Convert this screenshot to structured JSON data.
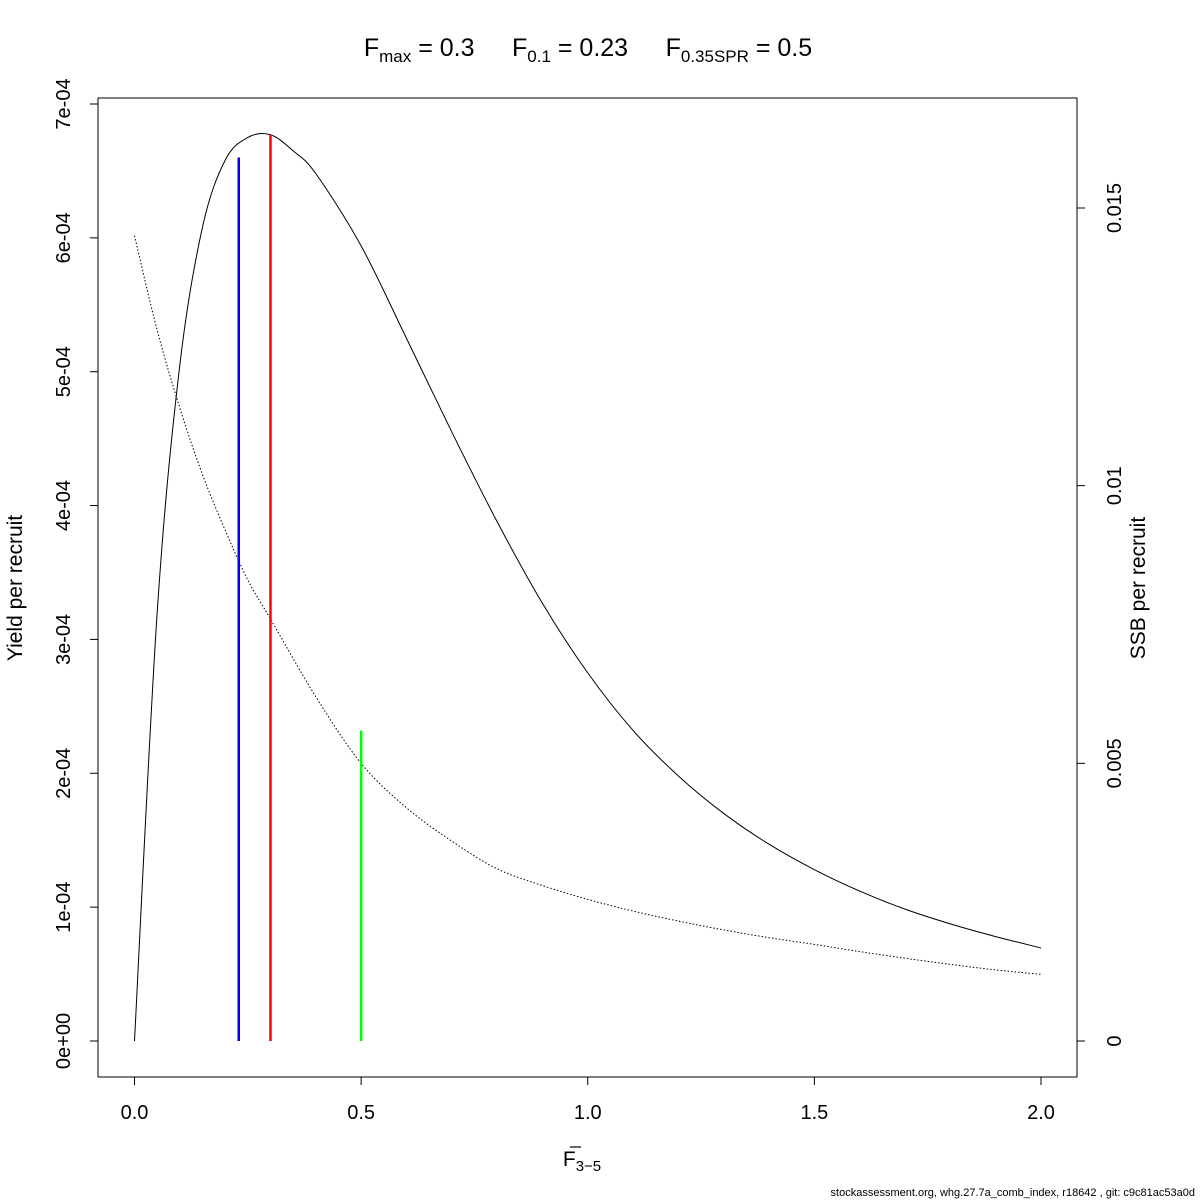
{
  "chart_data": {
    "type": "line",
    "title_parts": [
      {
        "main": "F",
        "sub": "max",
        "eq": " = 0.3"
      },
      {
        "main": "F",
        "sub": "0.1",
        "eq": " = 0.23"
      },
      {
        "main": "F",
        "sub": "0.35SPR",
        "eq": " = 0.5"
      }
    ],
    "xlabel": "F",
    "xlabel_sub": "3−5",
    "ylabel_left": "Yield per recruit",
    "ylabel_right": "SSB per recruit",
    "xlim": [
      0,
      2
    ],
    "ylim_left": [
      0,
      0.0007
    ],
    "ylim_right": [
      0,
      0.015
    ],
    "x_ticks": [
      0,
      0.5,
      1,
      1.5,
      2
    ],
    "x_tick_labels": [
      "0.0",
      "0.5",
      "1.0",
      "1.5",
      "2.0"
    ],
    "y_left_ticks": [
      0,
      0.0001,
      0.0002,
      0.0003,
      0.0004,
      0.0005,
      0.0006,
      0.0007
    ],
    "y_left_tick_labels": [
      "0e+00",
      "1e-04",
      "2e-04",
      "3e-04",
      "4e-04",
      "5e-04",
      "6e-04",
      "7e-04"
    ],
    "y_right_ticks": [
      0,
      0.005,
      0.01,
      0.015
    ],
    "y_right_tick_labels": [
      "0",
      "0.005",
      "0.01",
      "0.015"
    ],
    "grid": false,
    "series": [
      {
        "axis": "left",
        "style": "solid",
        "x": [
          0,
          0.05,
          0.1,
          0.15,
          0.2,
          0.25,
          0.3,
          0.35,
          0.4,
          0.5,
          0.6,
          0.7,
          0.8,
          0.9,
          1.0,
          1.1,
          1.2,
          1.3,
          1.4,
          1.5,
          1.6,
          1.7,
          1.8,
          1.9,
          2.0
        ],
        "values": [
          0,
          0.00032,
          0.000505,
          0.000608,
          0.000658,
          0.000675,
          0.000677,
          0.000665,
          0.000648,
          0.000594,
          0.000525,
          0.000455,
          0.000388,
          0.000327,
          0.000275,
          0.000232,
          0.000198,
          0.00017,
          0.000147,
          0.000128,
          0.000112,
          9.85e-05,
          8.75e-05,
          7.8e-05,
          6.95e-05
        ]
      },
      {
        "axis": "right",
        "style": "dotted",
        "x": [
          0,
          0.05,
          0.1,
          0.15,
          0.2,
          0.25,
          0.3,
          0.4,
          0.5,
          0.6,
          0.7,
          0.8,
          0.9,
          1.0,
          1.1,
          1.2,
          1.3,
          1.4,
          1.5,
          1.6,
          1.7,
          1.8,
          1.9,
          2.0
        ],
        "values": [
          0.0145,
          0.0128,
          0.0114,
          0.0102,
          0.0092,
          0.0083,
          0.0076,
          0.0062,
          0.005,
          0.0042,
          0.0036,
          0.0031,
          0.0028,
          0.00255,
          0.00234,
          0.00216,
          0.002,
          0.00186,
          0.00174,
          0.00161,
          0.00149,
          0.00138,
          0.00128,
          0.0012
        ]
      }
    ],
    "reference_lines": [
      {
        "x": 0.23,
        "ymax_left": 0.00066,
        "color": "#0000ff"
      },
      {
        "x": 0.3,
        "ymax_left": 0.000677,
        "color": "#ff0000"
      },
      {
        "x": 0.5,
        "ymax_left": 0.000232,
        "color": "#00ff00"
      }
    ]
  },
  "footer": "stockassessment.org, whg.27.7a_comb_index, r18642 , git: c9c81ac53a0d"
}
